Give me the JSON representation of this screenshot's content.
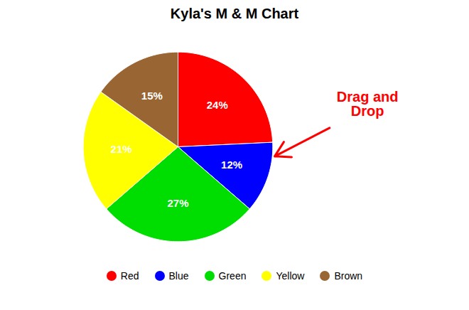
{
  "chart_data": {
    "type": "pie",
    "title": "Kyla's M & M Chart",
    "categories": [
      "Red",
      "Blue",
      "Green",
      "Yellow",
      "Brown"
    ],
    "values": [
      24,
      12,
      27,
      21,
      15
    ],
    "value_labels": [
      "24%",
      "12%",
      "27%",
      "21%",
      "15%"
    ],
    "colors": [
      "#ff0000",
      "#0000ff",
      "#00dd00",
      "#ffff00",
      "#996633"
    ],
    "data_labels": true,
    "legend": "bottom",
    "annotations": [
      {
        "text": "Drag and\nDrop",
        "color": "#ff0000"
      }
    ]
  }
}
